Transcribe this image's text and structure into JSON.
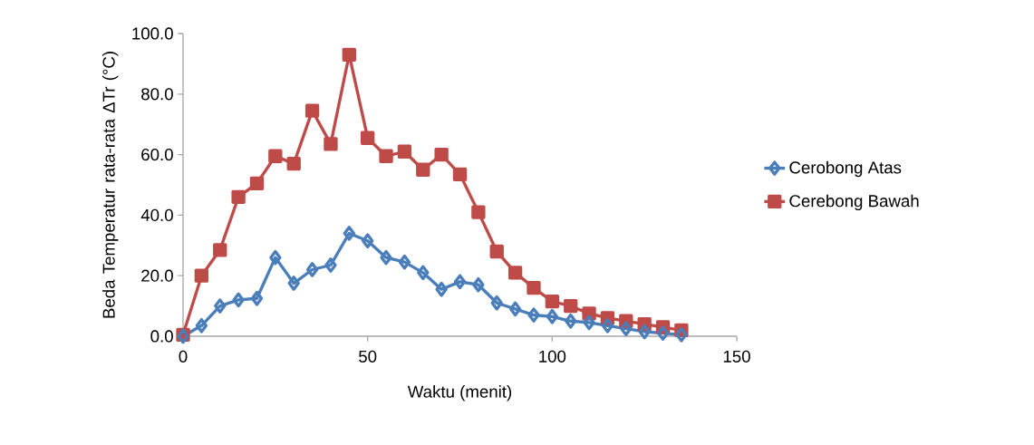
{
  "chart_data": {
    "type": "line",
    "xlabel": "Waktu (menit)",
    "ylabel": "Beda Temperatur rata-rata  ΔTr (°C)",
    "x": [
      0,
      5,
      10,
      15,
      20,
      25,
      30,
      35,
      40,
      45,
      50,
      55,
      60,
      65,
      70,
      75,
      80,
      85,
      90,
      95,
      100,
      105,
      110,
      115,
      120,
      125,
      130,
      135
    ],
    "series": [
      {
        "name": "Cerobong Atas",
        "color": "#4a7ebb",
        "marker": "diamond",
        "values": [
          0,
          3.5,
          10,
          12,
          12.5,
          26,
          17.5,
          22,
          23.5,
          34,
          31.5,
          26,
          24.5,
          21,
          15.5,
          18,
          17,
          11,
          9,
          7,
          6.5,
          5,
          4.5,
          3.5,
          2.5,
          1.5,
          1,
          0.5
        ]
      },
      {
        "name": "Cerebong Bawah",
        "color": "#be4b48",
        "marker": "square",
        "values": [
          0.5,
          20,
          28.5,
          46,
          50.5,
          59.5,
          57,
          74.5,
          63.5,
          93,
          65.5,
          59.5,
          61,
          55,
          60,
          53.5,
          41,
          28,
          21,
          16,
          11.5,
          10,
          7.5,
          6,
          5,
          4,
          3,
          2
        ]
      }
    ],
    "xlim": [
      0,
      150
    ],
    "xticks": [
      0,
      50,
      100,
      150
    ],
    "ylim": [
      0,
      100
    ],
    "yticks": [
      {
        "value": 0,
        "label": "0.0"
      },
      {
        "value": 20,
        "label": "20.0"
      },
      {
        "value": 40,
        "label": "40.0"
      },
      {
        "value": 60,
        "label": "60.0"
      },
      {
        "value": 80,
        "label": "80.0"
      },
      {
        "value": 100,
        "label": "100.0"
      }
    ],
    "grid": false,
    "legend": "right"
  }
}
